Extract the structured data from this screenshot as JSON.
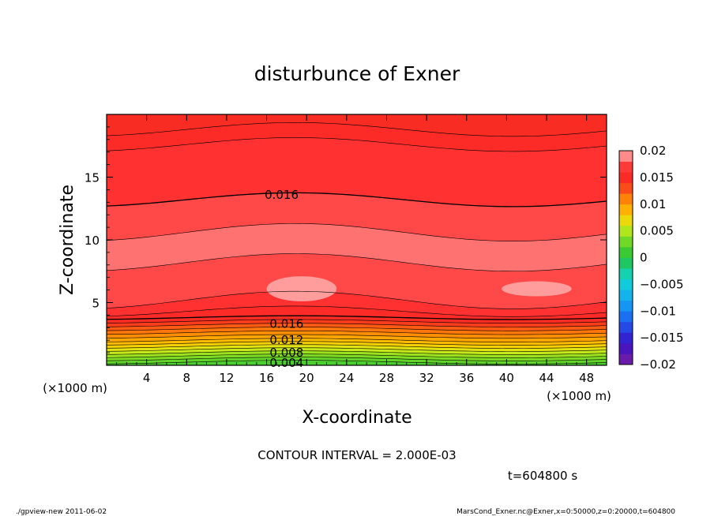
{
  "chart_data": {
    "type": "heatmap",
    "title": "disturbunce of Exner",
    "xlabel": "X-coordinate",
    "ylabel": "Z-coordinate",
    "x_unit": "(×1000 m)",
    "y_unit": "(×1000 m)",
    "xlim": [
      0,
      50
    ],
    "ylim": [
      0,
      20
    ],
    "x_ticks": [
      4,
      8,
      12,
      16,
      20,
      24,
      28,
      32,
      36,
      40,
      44,
      48
    ],
    "y_ticks": [
      5,
      10,
      15
    ],
    "colorbar": {
      "ticks": [
        "0.02",
        "0.015",
        "0.01",
        "0.005",
        "0",
        "−0.005",
        "−0.01",
        "−0.015",
        "−0.02"
      ],
      "range": [
        -0.02,
        0.02
      ],
      "interval": 0.002
    },
    "contour_labels": [
      {
        "text": "0.016",
        "x": 17.5,
        "z": 13.6
      },
      {
        "text": "0.016",
        "x": 18.0,
        "z": 3.3
      },
      {
        "text": "0.012",
        "x": 18.0,
        "z": 2.0
      },
      {
        "text": "0.008",
        "x": 18.0,
        "z": 1.0
      },
      {
        "text": "0.004",
        "x": 18.0,
        "z": 0.2
      }
    ],
    "contour_interval_text": "CONTOUR INTERVAL = 2.000E-03",
    "time_text": "t=604800 s",
    "footer_left": "./gpview-new   2011-06-02",
    "footer_right": "MarsCond_Exner.nc@Exner,x=0:50000,z=0:20000,t=604800",
    "field_bands": [
      {
        "z": 0.0,
        "value": 0.0016
      },
      {
        "z": 0.25,
        "value": 0.0025
      },
      {
        "z": 0.5,
        "value": 0.0035
      },
      {
        "z": 0.75,
        "value": 0.0045
      },
      {
        "z": 1.0,
        "value": 0.0055
      },
      {
        "z": 1.25,
        "value": 0.0065
      },
      {
        "z": 1.5,
        "value": 0.0075
      },
      {
        "z": 1.75,
        "value": 0.0085
      },
      {
        "z": 2.0,
        "value": 0.0095
      },
      {
        "z": 2.3,
        "value": 0.0105
      },
      {
        "z": 2.6,
        "value": 0.0115
      },
      {
        "z": 2.9,
        "value": 0.0125
      },
      {
        "z": 3.2,
        "value": 0.0135
      },
      {
        "z": 3.5,
        "value": 0.0145
      },
      {
        "z": 3.8,
        "value": 0.0155
      },
      {
        "z": 4.3,
        "value": 0.0165
      },
      {
        "z": 5.2,
        "value": 0.0175
      },
      {
        "z": 8.2,
        "value": 0.0185
      },
      {
        "z": 10.6,
        "value": 0.0175
      },
      {
        "z": 13.2,
        "value": 0.0165
      },
      {
        "z": 17.6,
        "value": 0.0155
      },
      {
        "z": 18.8,
        "value": 0.0145
      }
    ],
    "highlight_patches": [
      {
        "x": 19.5,
        "z": 6.1,
        "rx": 3.5,
        "rz": 1.0,
        "value": 0.0195
      },
      {
        "x": 43.0,
        "z": 6.1,
        "rx": 3.5,
        "rz": 0.6,
        "value": 0.0195
      }
    ]
  }
}
